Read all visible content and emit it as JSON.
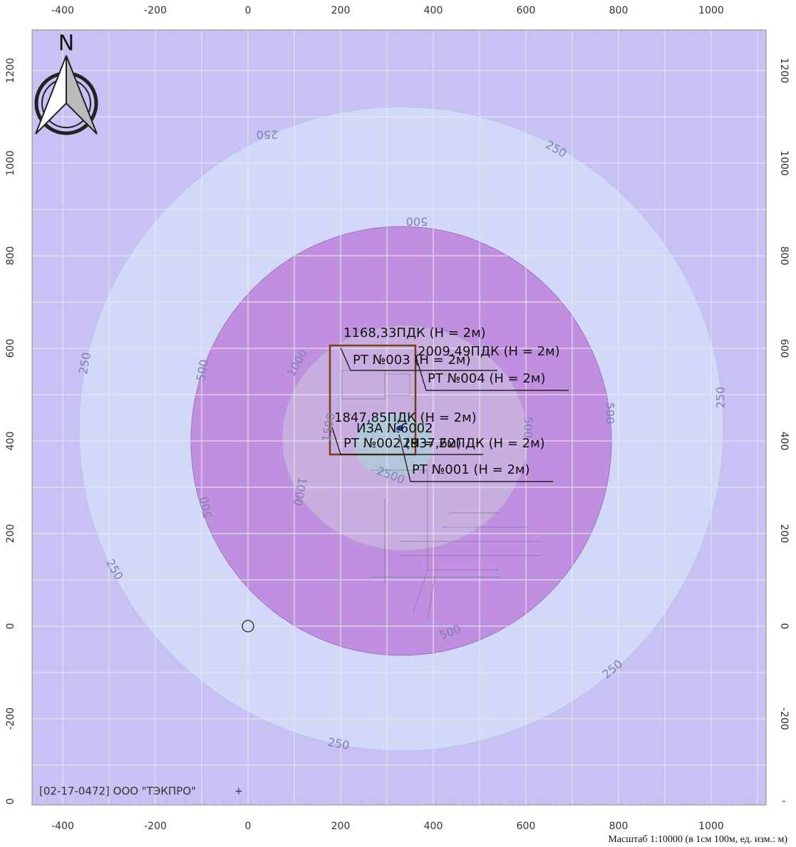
{
  "x_ticks": [
    -400,
    -200,
    0,
    200,
    400,
    600,
    800,
    1000
  ],
  "y_ticks": [
    -200,
    0,
    200,
    400,
    600,
    800,
    1000,
    1200
  ],
  "edge_labels": {
    "left_bottom": "0",
    "right_bottom": "-"
  },
  "north": "N",
  "contour_labels": [
    "250",
    "250",
    "250",
    "250",
    "250",
    "250",
    "250",
    "500",
    "500",
    "500",
    "500",
    "500",
    "500",
    "1000",
    "1000",
    "1500",
    "2500"
  ],
  "points": [
    {
      "value": "1168,33ПДК (Н = 2м)",
      "name": "РТ №003 (Н = 2м)"
    },
    {
      "value": "2009,49ПДК (Н = 2м)",
      "name": "РТ №004 (Н = 2м)"
    },
    {
      "value": "1847,85ПДК (Н = 2м)",
      "name": "РТ №002 (Н = 2м)"
    },
    {
      "value": "2937,62ПДК (Н = 2м)",
      "name": "РТ №001 (Н = 2м)"
    }
  ],
  "source": "ИЗА №6002",
  "footer": {
    "organization": "[02-17-0472] ООО \"ТЭКПРО\"",
    "marker": "+",
    "scale": "Масштаб 1:10000 (в 1см 100м, ед. изм.: м)"
  }
}
